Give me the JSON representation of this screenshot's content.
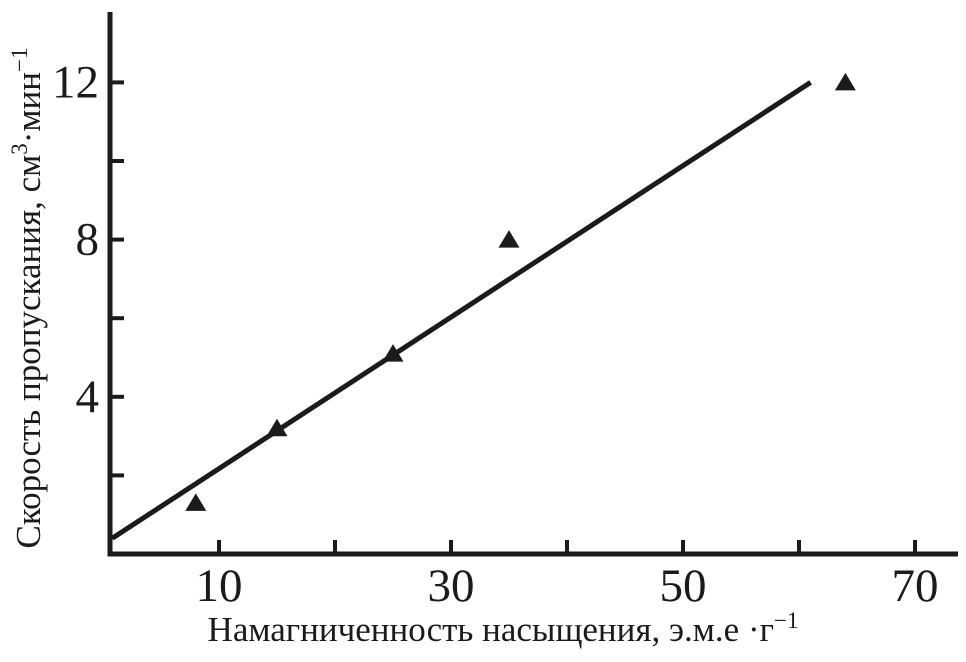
{
  "figure": {
    "background": "#ffffff",
    "ink_color": "#1b1b1b"
  },
  "chart_data": {
    "type": "scatter",
    "title": "",
    "xlabel": "Намагниченность насыщения, э.м.е ·г⁻¹",
    "ylabel": "Скорость пропускания, см³·мин⁻¹",
    "xlabel_parts": [
      {
        "t": "Намагниченность насыщения, э.м.е ·г"
      },
      {
        "t": "−1",
        "sup": true
      }
    ],
    "ylabel_parts": [
      {
        "t": "Скорость пропускания, см"
      },
      {
        "t": "3",
        "sup": true
      },
      {
        "t": "·мин"
      },
      {
        "t": "−1",
        "sup": true
      }
    ],
    "xlim": [
      0,
      74
    ],
    "ylim": [
      0,
      13.8
    ],
    "x_major_ticks": [
      10,
      30,
      50,
      70
    ],
    "x_minor_ticks": [
      20,
      40,
      60
    ],
    "y_major_ticks": [
      4,
      8,
      12
    ],
    "y_minor_ticks": [
      2,
      6,
      10
    ],
    "grid": false,
    "legend": false,
    "series": [
      {
        "name": "measurements",
        "type": "scatter",
        "marker": "filled-triangle-up",
        "color": "#1b1b1b",
        "points": [
          [
            8,
            1.3
          ],
          [
            15,
            3.2
          ],
          [
            25,
            5.1
          ],
          [
            35,
            8.0
          ],
          [
            64,
            12.0
          ]
        ]
      },
      {
        "name": "linear-fit",
        "type": "line",
        "color": "#1b1b1b",
        "points": [
          [
            0.8,
            0.4
          ],
          [
            61,
            12.0
          ]
        ]
      }
    ]
  }
}
